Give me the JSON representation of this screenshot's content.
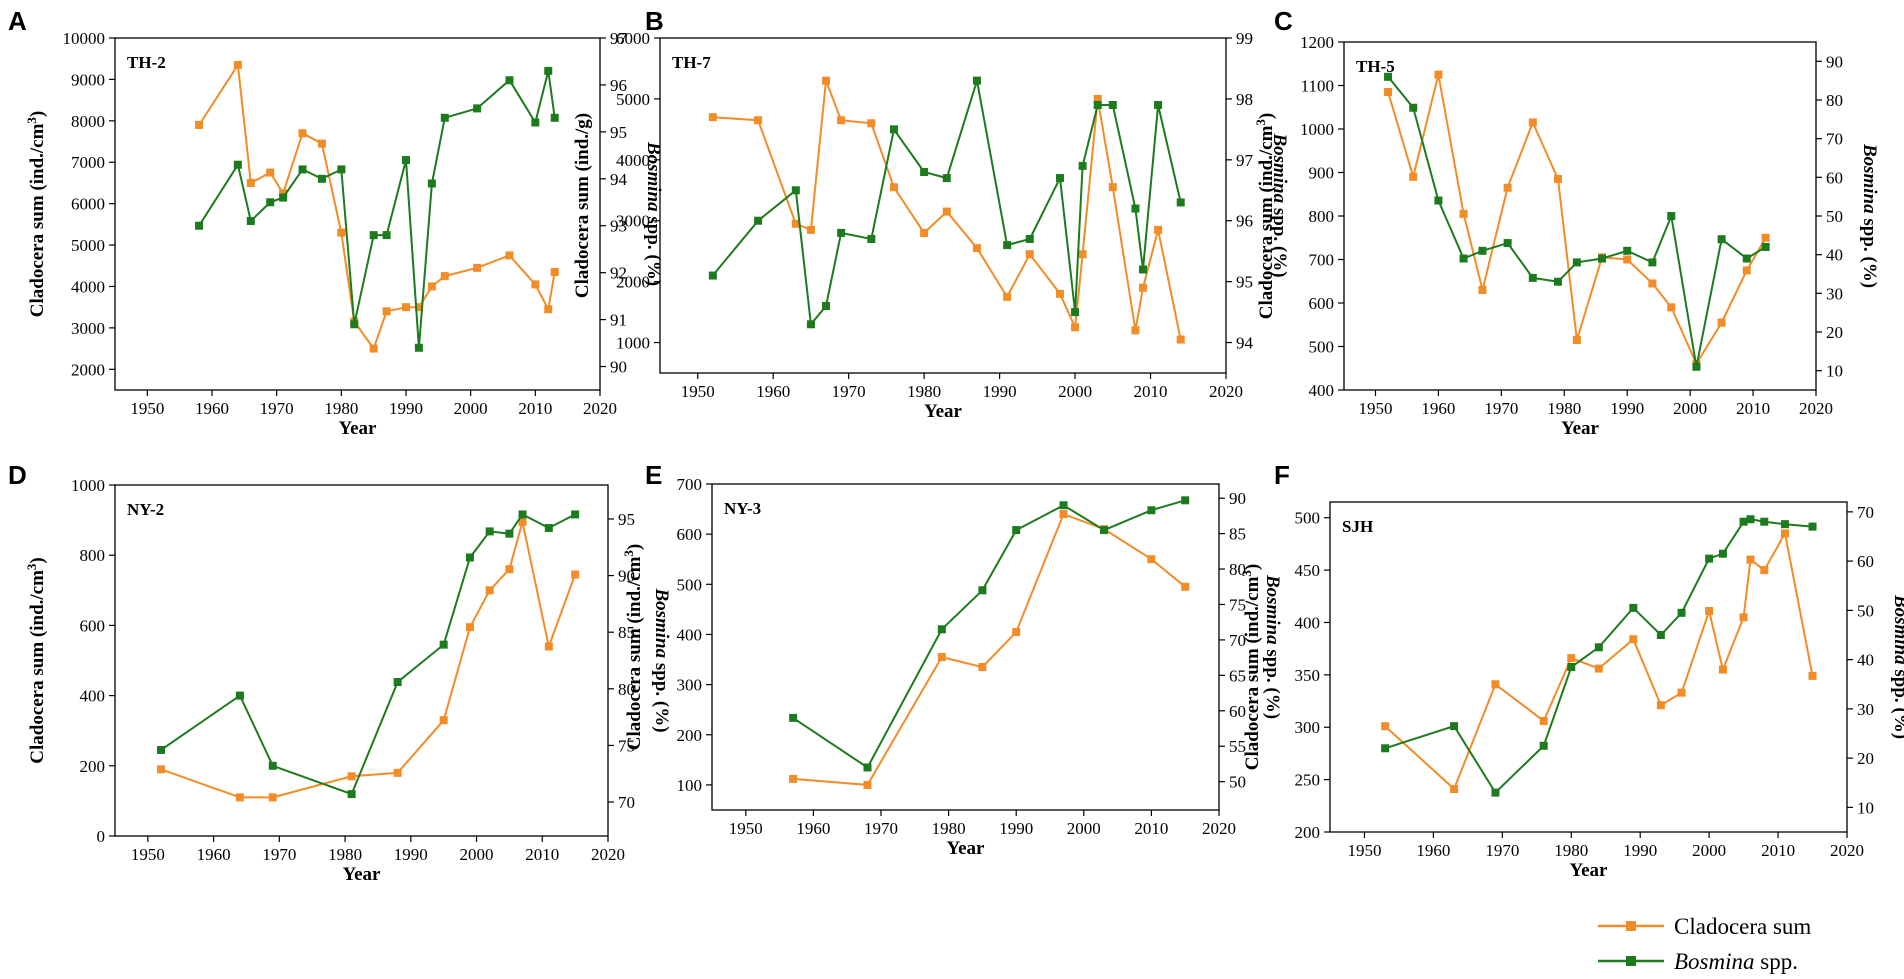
{
  "colors": {
    "cladocera": "#F28C28",
    "bosmina": "#1E7A1E",
    "axis": "#000000"
  },
  "legend": {
    "cladocera_label": "Cladocera sum",
    "bosmina_label_italic": "Bosmina",
    "bosmina_label_rest": " spp."
  },
  "chart_data": [
    {
      "panel": "A",
      "site": "TH-2",
      "type": "line",
      "xlabel": "Year",
      "ylabel": "Cladocera sum (ind./cm",
      "ylabel_sup": "3",
      "ylabel_tail": ")",
      "y2label_italic": "Bosmina",
      "y2label_rest": " spp. (%)",
      "xlim": [
        1945,
        2020
      ],
      "xticks": [
        1950,
        1960,
        1970,
        1980,
        1990,
        2000,
        2010,
        2020
      ],
      "ylim": [
        1500,
        10000
      ],
      "yticks": [
        2000,
        3000,
        4000,
        5000,
        6000,
        7000,
        8000,
        9000,
        10000
      ],
      "y2lim": [
        89.5,
        97
      ],
      "y2ticks": [
        90,
        91,
        92,
        93,
        94,
        95,
        96,
        97
      ],
      "series": [
        {
          "name": "Cladocera sum",
          "axis": "left",
          "x": [
            1958,
            1964,
            1966,
            1969,
            1971,
            1974,
            1977,
            1980,
            1982,
            1985,
            1987,
            1990,
            1992,
            1994,
            1996,
            2001,
            2006,
            2010,
            2012,
            2013
          ],
          "y": [
            7900,
            9350,
            6500,
            6750,
            6250,
            7700,
            7450,
            5300,
            3150,
            2500,
            3400,
            3500,
            3500,
            4000,
            4250,
            4450,
            4750,
            4050,
            3450,
            4350
          ]
        },
        {
          "name": "Bosmina spp.",
          "axis": "right",
          "x": [
            1958,
            1964,
            1966,
            1969,
            1971,
            1974,
            1977,
            1980,
            1982,
            1985,
            1987,
            1990,
            1992,
            1994,
            1996,
            2001,
            2006,
            2010,
            2012,
            2013
          ],
          "y": [
            93.0,
            94.3,
            93.1,
            93.5,
            93.6,
            94.2,
            94.0,
            94.2,
            90.9,
            92.8,
            92.8,
            94.4,
            90.4,
            93.9,
            95.3,
            95.5,
            96.1,
            95.2,
            96.3,
            95.3
          ]
        }
      ]
    },
    {
      "panel": "B",
      "site": "TH-7",
      "type": "line",
      "xlabel": "Year",
      "ylabel": "Cladocera sum (ind./g)",
      "ylabel_sup": "",
      "ylabel_tail": "",
      "y2label_italic": "Bosmina",
      "y2label_rest": " spp. (%)",
      "xlim": [
        1945,
        2020
      ],
      "xticks": [
        1950,
        1960,
        1970,
        1980,
        1990,
        2000,
        2010,
        2020
      ],
      "ylim": [
        500,
        6000
      ],
      "yticks": [
        1000,
        2000,
        3000,
        4000,
        5000,
        6000
      ],
      "y2lim": [
        93.5,
        99
      ],
      "y2ticks": [
        94,
        95,
        96,
        97,
        98,
        99
      ],
      "series": [
        {
          "name": "Cladocera sum",
          "axis": "left",
          "x": [
            1952,
            1958,
            1963,
            1965,
            1967,
            1969,
            1973,
            1976,
            1980,
            1983,
            1987,
            1991,
            1994,
            1998,
            2000,
            2001,
            2003,
            2005,
            2008,
            2009,
            2011,
            2014
          ],
          "y": [
            4700,
            4650,
            2950,
            2850,
            5300,
            4650,
            4600,
            3550,
            2800,
            3150,
            2550,
            1750,
            2450,
            1800,
            1250,
            2450,
            5000,
            3550,
            1200,
            1900,
            2850,
            1050
          ]
        },
        {
          "name": "Bosmina spp.",
          "axis": "right",
          "x": [
            1952,
            1958,
            1963,
            1965,
            1967,
            1969,
            1973,
            1976,
            1980,
            1983,
            1987,
            1991,
            1994,
            1998,
            2000,
            2001,
            2003,
            2005,
            2008,
            2009,
            2011,
            2014
          ],
          "y": [
            95.1,
            96.0,
            96.5,
            94.3,
            94.6,
            95.8,
            95.7,
            97.5,
            96.8,
            96.7,
            98.3,
            95.6,
            95.7,
            96.7,
            94.5,
            96.9,
            97.9,
            97.9,
            96.2,
            95.2,
            97.9,
            96.3
          ]
        }
      ]
    },
    {
      "panel": "C",
      "site": "TH-5",
      "type": "line",
      "xlabel": "Year",
      "ylabel": "Cladocera sum (ind./cm",
      "ylabel_sup": "3",
      "ylabel_tail": ")",
      "y2label_italic": "Bosmina",
      "y2label_rest": " spp. (%)",
      "xlim": [
        1945,
        2020
      ],
      "xticks": [
        1950,
        1960,
        1970,
        1980,
        1990,
        2000,
        2010,
        2020
      ],
      "ylim": [
        400,
        1200
      ],
      "yticks": [
        400,
        500,
        600,
        700,
        800,
        900,
        1000,
        1100,
        1200
      ],
      "y2lim": [
        5,
        95
      ],
      "y2ticks": [
        10,
        20,
        30,
        40,
        50,
        60,
        70,
        80,
        90
      ],
      "series": [
        {
          "name": "Cladocera sum",
          "axis": "left",
          "x": [
            1952,
            1956,
            1960,
            1964,
            1967,
            1971,
            1975,
            1979,
            1982,
            1986,
            1990,
            1994,
            1997,
            2001,
            2005,
            2009,
            2012
          ],
          "y": [
            1085,
            890,
            1125,
            805,
            630,
            865,
            1015,
            885,
            515,
            705,
            700,
            645,
            590,
            460,
            555,
            675,
            750
          ]
        },
        {
          "name": "Bosmina spp.",
          "axis": "right",
          "x": [
            1952,
            1956,
            1960,
            1964,
            1967,
            1971,
            1975,
            1979,
            1982,
            1986,
            1990,
            1994,
            1997,
            2001,
            2005,
            2009,
            2012
          ],
          "y": [
            86,
            78,
            54,
            39,
            41,
            43,
            34,
            33,
            38,
            39,
            41,
            38,
            50,
            11,
            44,
            39,
            42
          ]
        }
      ]
    },
    {
      "panel": "D",
      "site": "NY-2",
      "type": "line",
      "xlabel": "Year",
      "ylabel": "Cladocera sum (ind./cm",
      "ylabel_sup": "3",
      "ylabel_tail": ")",
      "y2label_italic": "Bosmina",
      "y2label_rest": " spp. (%)",
      "xlim": [
        1945,
        2020
      ],
      "xticks": [
        1950,
        1960,
        1970,
        1980,
        1990,
        2000,
        2010,
        2020
      ],
      "ylim": [
        0,
        1000
      ],
      "yticks": [
        0,
        200,
        400,
        600,
        800,
        1000
      ],
      "y2lim": [
        67,
        98
      ],
      "y2ticks": [
        70,
        75,
        80,
        85,
        90,
        95
      ],
      "series": [
        {
          "name": "Cladocera sum",
          "axis": "left",
          "x": [
            1952,
            1964,
            1969,
            1981,
            1988,
            1995,
            1999,
            2002,
            2005,
            2007,
            2011,
            2015
          ],
          "y": [
            190,
            110,
            110,
            170,
            180,
            330,
            595,
            700,
            760,
            895,
            540,
            745
          ]
        },
        {
          "name": "Bosmina spp.",
          "axis": "right",
          "x": [
            1952,
            1964,
            1969,
            1981,
            1988,
            1995,
            1999,
            2002,
            2005,
            2007,
            2011,
            2015
          ],
          "y": [
            74.6,
            79.4,
            73.2,
            70.7,
            80.6,
            83.9,
            91.6,
            93.9,
            93.7,
            95.4,
            94.2,
            95.4
          ]
        }
      ]
    },
    {
      "panel": "E",
      "site": "NY-3",
      "type": "line",
      "xlabel": "Year",
      "ylabel": "Cladocera sum (ind./cm",
      "ylabel_sup": "3",
      "ylabel_tail": ")",
      "y2label_italic": "Bosmina",
      "y2label_rest": " spp. (%)",
      "xlim": [
        1945,
        2020
      ],
      "xticks": [
        1950,
        1960,
        1970,
        1980,
        1990,
        2000,
        2010,
        2020
      ],
      "ylim": [
        50,
        700
      ],
      "yticks": [
        100,
        200,
        300,
        400,
        500,
        600,
        700
      ],
      "y2lim": [
        46,
        92
      ],
      "y2ticks": [
        50,
        55,
        60,
        65,
        70,
        75,
        80,
        85,
        90
      ],
      "series": [
        {
          "name": "Cladocera sum",
          "axis": "left",
          "x": [
            1957,
            1968,
            1979,
            1985,
            1990,
            1997,
            2003,
            2010,
            2015
          ],
          "y": [
            112,
            100,
            355,
            335,
            405,
            640,
            610,
            550,
            495
          ]
        },
        {
          "name": "Bosmina spp.",
          "axis": "right",
          "x": [
            1957,
            1968,
            1979,
            1985,
            1990,
            1997,
            2003,
            2010,
            2015
          ],
          "y": [
            59,
            52,
            71.5,
            77,
            85.5,
            89,
            85.5,
            88.3,
            89.7
          ]
        }
      ]
    },
    {
      "panel": "F",
      "site": "SJH",
      "type": "line",
      "xlabel": "Year",
      "ylabel": "Cladocera sum (ind./cm",
      "ylabel_sup": "3",
      "ylabel_tail": ")",
      "y2label_italic": "Bosmina",
      "y2label_rest": " spp. (%)",
      "xlim": [
        1945,
        2020
      ],
      "xticks": [
        1950,
        1960,
        1970,
        1980,
        1990,
        2000,
        2010,
        2020
      ],
      "ylim": [
        200,
        515
      ],
      "yticks": [
        200,
        250,
        300,
        350,
        400,
        450,
        500
      ],
      "y2lim": [
        5,
        72
      ],
      "y2ticks": [
        10,
        20,
        30,
        40,
        50,
        60,
        70
      ],
      "series": [
        {
          "name": "Cladocera sum",
          "axis": "left",
          "x": [
            1953,
            1963,
            1969,
            1976,
            1980,
            1984,
            1989,
            1993,
            1996,
            2000,
            2002,
            2005,
            2006,
            2008,
            2011,
            2015
          ],
          "y": [
            301,
            241,
            341,
            306,
            366,
            356,
            384,
            321,
            333,
            411,
            355,
            405,
            460,
            450,
            485,
            349
          ]
        },
        {
          "name": "Bosmina spp.",
          "axis": "right",
          "x": [
            1953,
            1963,
            1969,
            1976,
            1980,
            1984,
            1989,
            1993,
            1996,
            2000,
            2002,
            2005,
            2006,
            2008,
            2011,
            2015
          ],
          "y": [
            22,
            26.5,
            13,
            22.5,
            38.5,
            42.5,
            50.5,
            45,
            49.5,
            60.5,
            61.5,
            68,
            68.5,
            68,
            67.5,
            67
          ]
        }
      ]
    }
  ]
}
